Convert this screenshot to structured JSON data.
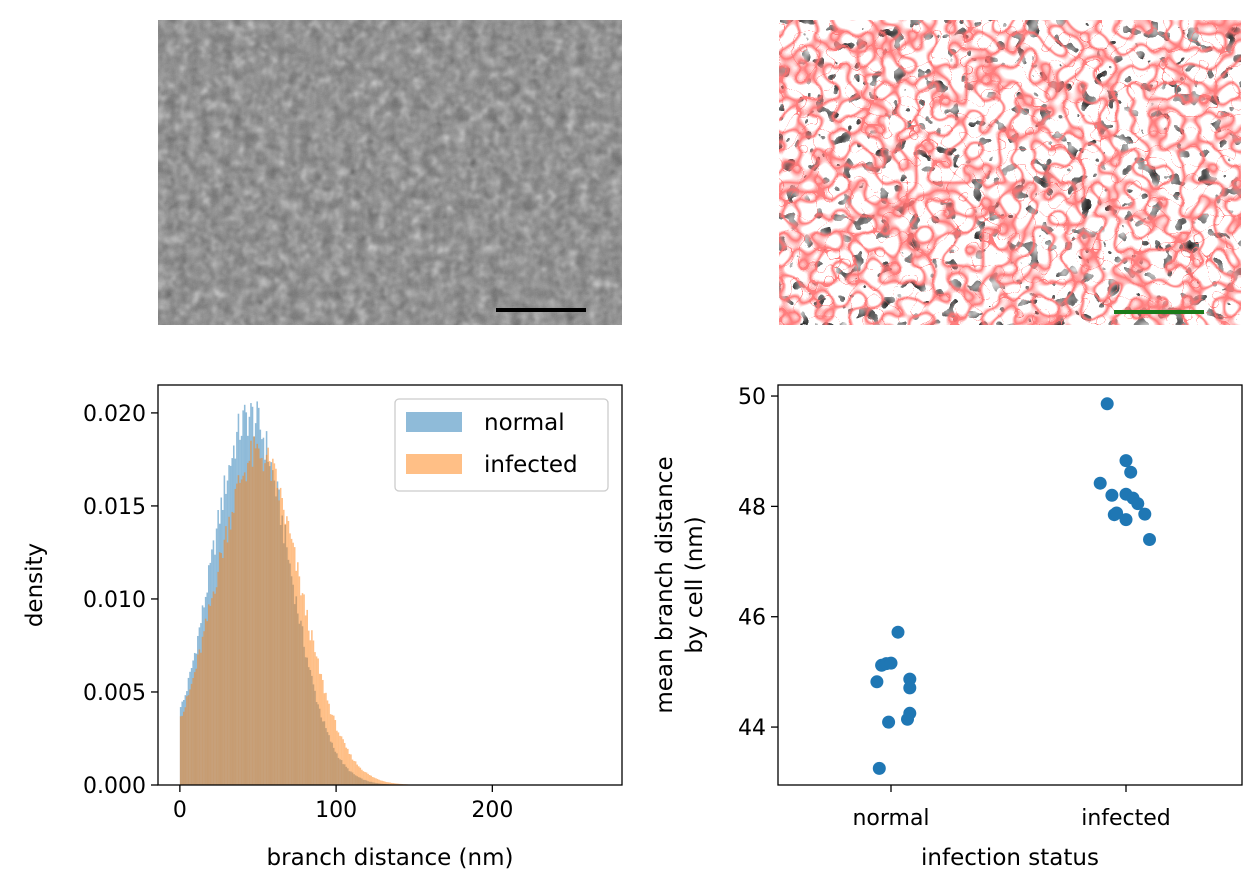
{
  "chart_data": [
    {
      "type": "image",
      "panel": "sem-micrograph",
      "description_colors": {
        "base": "#6e6e6e",
        "light": "#a8a8a8",
        "dark": "#4a4a4a"
      },
      "scale_bar_color": "#000000"
    },
    {
      "type": "image",
      "panel": "segmentation",
      "description_colors": {
        "blob": "#000000",
        "boundary": "#ff2a2a",
        "background": "#ffffff"
      },
      "scale_bar_color": "#1a7a1a"
    },
    {
      "type": "histogram",
      "xlabel": "branch distance (nm)",
      "ylabel": "density",
      "xlim": [
        -14,
        283
      ],
      "ylim": [
        0,
        0.0215
      ],
      "xticks": [
        0,
        100,
        200
      ],
      "yticks": [
        0.0,
        0.005,
        0.01,
        0.015,
        0.02
      ],
      "ytick_labels": [
        "0.000",
        "0.005",
        "0.010",
        "0.015",
        "0.020"
      ],
      "legend": "top-right",
      "series": [
        {
          "name": "normal",
          "color": "#1f77b4",
          "alpha": 0.5,
          "mode": 45,
          "peak": 0.0198,
          "range": [
            0,
            145
          ]
        },
        {
          "name": "infected",
          "color": "#ff7f0e",
          "alpha": 0.5,
          "mode": 50,
          "peak": 0.0178,
          "range": [
            0,
            148
          ]
        }
      ]
    },
    {
      "type": "scatter",
      "xlabel": "infection status",
      "ylabel_line1": "mean branch distance",
      "ylabel_line2": "by cell (nm)",
      "categories": [
        "normal",
        "infected"
      ],
      "ylim": [
        42.95,
        50.2
      ],
      "yticks": [
        44,
        46,
        48,
        50
      ],
      "color": "#1f77b4",
      "points": [
        {
          "cat": 0,
          "jitter": -0.06,
          "y": 44.82
        },
        {
          "cat": 0,
          "jitter": -0.04,
          "y": 45.12
        },
        {
          "cat": 0,
          "jitter": -0.02,
          "y": 45.15
        },
        {
          "cat": 0,
          "jitter": 0.0,
          "y": 45.16
        },
        {
          "cat": 0,
          "jitter": 0.03,
          "y": 45.72
        },
        {
          "cat": 0,
          "jitter": -0.01,
          "y": 44.09
        },
        {
          "cat": 0,
          "jitter": -0.05,
          "y": 43.25
        },
        {
          "cat": 0,
          "jitter": 0.08,
          "y": 44.87
        },
        {
          "cat": 0,
          "jitter": 0.08,
          "y": 44.71
        },
        {
          "cat": 0,
          "jitter": 0.08,
          "y": 44.25
        },
        {
          "cat": 0,
          "jitter": 0.07,
          "y": 44.14
        },
        {
          "cat": 1,
          "jitter": -0.11,
          "y": 48.42
        },
        {
          "cat": 1,
          "jitter": -0.08,
          "y": 49.86
        },
        {
          "cat": 1,
          "jitter": 0.0,
          "y": 48.83
        },
        {
          "cat": 1,
          "jitter": 0.02,
          "y": 48.62
        },
        {
          "cat": 1,
          "jitter": -0.06,
          "y": 48.2
        },
        {
          "cat": 1,
          "jitter": 0.0,
          "y": 48.22
        },
        {
          "cat": 1,
          "jitter": 0.03,
          "y": 48.15
        },
        {
          "cat": 1,
          "jitter": 0.05,
          "y": 48.05
        },
        {
          "cat": 1,
          "jitter": -0.05,
          "y": 47.85
        },
        {
          "cat": 1,
          "jitter": -0.04,
          "y": 47.88
        },
        {
          "cat": 1,
          "jitter": 0.0,
          "y": 47.76
        },
        {
          "cat": 1,
          "jitter": 0.08,
          "y": 47.86
        },
        {
          "cat": 1,
          "jitter": 0.1,
          "y": 47.4
        }
      ]
    }
  ]
}
